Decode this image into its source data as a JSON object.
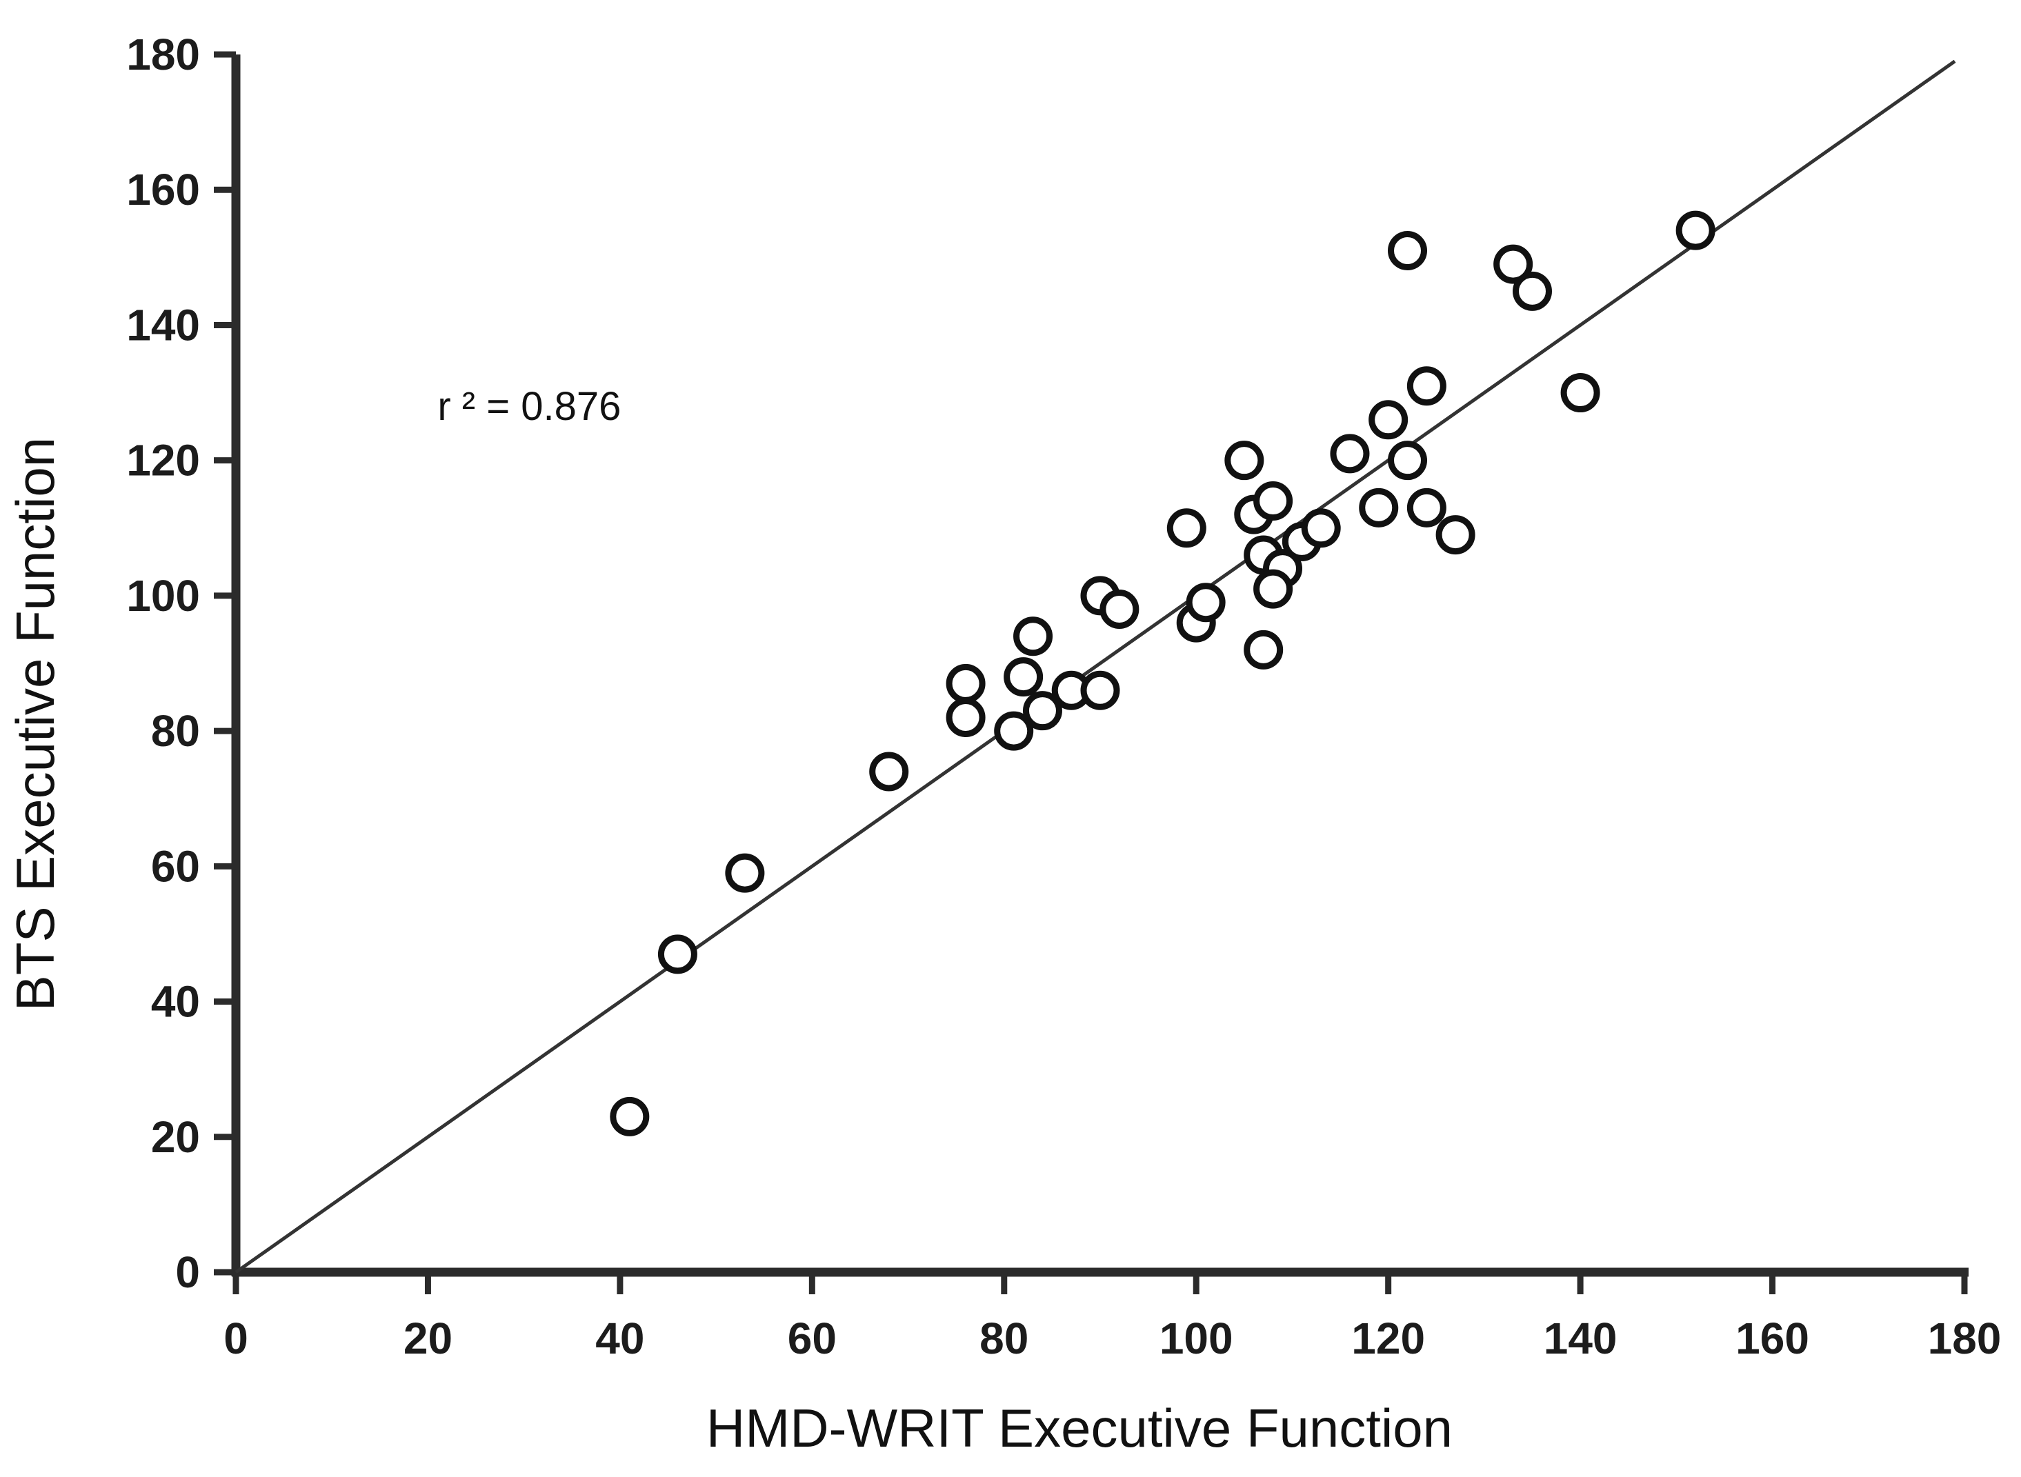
{
  "chart_data": {
    "type": "scatter",
    "title": "",
    "xlabel": "HMD-WRIT Executive Function",
    "ylabel": "BTS Executive Function",
    "xlim": [
      0,
      180
    ],
    "ylim": [
      0,
      180
    ],
    "x_ticks": [
      0,
      20,
      40,
      60,
      80,
      100,
      120,
      140,
      160,
      180
    ],
    "y_ticks": [
      0,
      20,
      40,
      60,
      80,
      100,
      120,
      140,
      160,
      180
    ],
    "grid": false,
    "legend": null,
    "annotation": {
      "text": "r ² = 0.876",
      "x": 21,
      "y": 126
    },
    "identity_line": {
      "x1": 0,
      "y1": 0,
      "x2": 179,
      "y2": 179
    },
    "marker": {
      "shape": "open-circle",
      "stroke_color": "#111111",
      "fill_color": "#ffffff"
    },
    "axis_color": "#2b2b2b",
    "line_color": "#333333",
    "points": [
      [
        41,
        23
      ],
      [
        46,
        47
      ],
      [
        53,
        59
      ],
      [
        68,
        74
      ],
      [
        76,
        87
      ],
      [
        76,
        82
      ],
      [
        82,
        88
      ],
      [
        83,
        94
      ],
      [
        81,
        80
      ],
      [
        84,
        83
      ],
      [
        87,
        86
      ],
      [
        90,
        86
      ],
      [
        90,
        100
      ],
      [
        92,
        98
      ],
      [
        100,
        96
      ],
      [
        101,
        99
      ],
      [
        107,
        92
      ],
      [
        99,
        110
      ],
      [
        105,
        120
      ],
      [
        106,
        112
      ],
      [
        108,
        114
      ],
      [
        107,
        106
      ],
      [
        109,
        104
      ],
      [
        108,
        101
      ],
      [
        111,
        108
      ],
      [
        113,
        110
      ],
      [
        119,
        113
      ],
      [
        124,
        113
      ],
      [
        127,
        109
      ],
      [
        116,
        121
      ],
      [
        120,
        126
      ],
      [
        122,
        120
      ],
      [
        124,
        131
      ],
      [
        122,
        151
      ],
      [
        133,
        149
      ],
      [
        135,
        145
      ],
      [
        140,
        130
      ],
      [
        152,
        154
      ]
    ]
  }
}
